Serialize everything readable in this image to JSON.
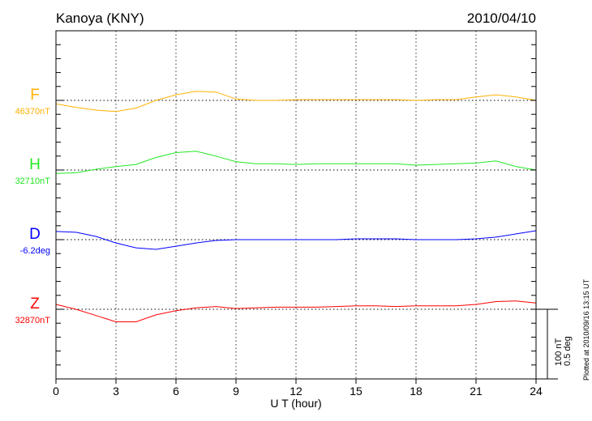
{
  "chart_data": {
    "type": "line",
    "title": "Kanoya (KNY)",
    "date": "2010/04/10",
    "xlabel": "U T (hour)",
    "xlim": [
      0,
      24
    ],
    "xticks": [
      0,
      3,
      6,
      9,
      12,
      15,
      18,
      21,
      24
    ],
    "x": [
      0,
      1,
      2,
      3,
      4,
      5,
      6,
      7,
      8,
      9,
      10,
      11,
      12,
      13,
      14,
      15,
      16,
      17,
      18,
      19,
      20,
      21,
      22,
      23,
      24
    ],
    "grid": true,
    "series": [
      {
        "name": "F",
        "baseline_label": "46370nT",
        "unit": "nT",
        "color": "#ffb000",
        "values": [
          -5,
          -10,
          -14,
          -16,
          -11,
          0,
          8,
          13,
          12,
          2,
          0,
          0,
          1,
          1,
          1,
          1,
          1,
          1,
          0,
          1,
          1,
          5,
          8,
          5,
          0
        ]
      },
      {
        "name": "H",
        "baseline_label": "32710nT",
        "unit": "nT",
        "color": "#22e822",
        "values": [
          -5,
          -4,
          1,
          5,
          8,
          18,
          25,
          27,
          20,
          12,
          9,
          9,
          8,
          9,
          9,
          9,
          9,
          9,
          7,
          8,
          9,
          10,
          13,
          5,
          0
        ]
      },
      {
        "name": "D",
        "baseline_label": "-6.2deg",
        "unit": "deg",
        "color": "#0000ff",
        "values": [
          0.059,
          0.053,
          0.023,
          -0.024,
          -0.059,
          -0.07,
          -0.047,
          -0.024,
          -0.006,
          0,
          0,
          0,
          0,
          0,
          0,
          0.006,
          0.006,
          0.006,
          0,
          0,
          0,
          0.006,
          0.018,
          0.041,
          0.064
        ]
      },
      {
        "name": "Z",
        "baseline_label": "32870nT",
        "unit": "nT",
        "color": "#ff0000",
        "values": [
          7,
          0,
          -9,
          -18,
          -18,
          -8,
          -2,
          2,
          4,
          1,
          2,
          3,
          3,
          3,
          4,
          5,
          5,
          4,
          5,
          5,
          5,
          7,
          11,
          12,
          9
        ]
      }
    ],
    "scale_bar": {
      "nT": "100 nT",
      "deg": "0.5 deg"
    },
    "footer": "Plotted at 2010/09/16 13:15 UT"
  }
}
